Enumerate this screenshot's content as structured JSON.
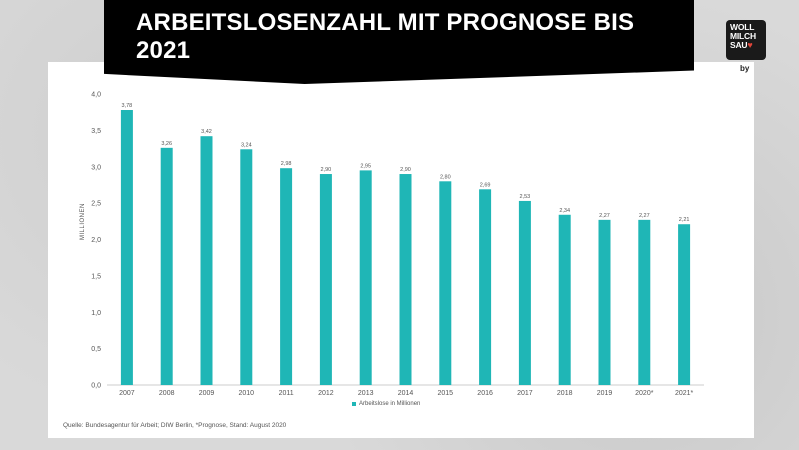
{
  "header": {
    "title": "ARBEITSLOSENZAHL MIT PROGNOSE BIS 2021"
  },
  "logo": {
    "line1": "WOLL",
    "line2": "MILCH",
    "line3": "SAU",
    "by": "by"
  },
  "source": "Quelle: Bundesagentur für Arbeit; DIW Berlin, *Prognose, Stand: August 2020",
  "colors": {
    "bar": "#1fb6b6",
    "banner": "#000000"
  },
  "chart_data": {
    "type": "bar",
    "categories": [
      "2007",
      "2008",
      "2009",
      "2010",
      "2011",
      "2012",
      "2013",
      "2014",
      "2015",
      "2016",
      "2017",
      "2018",
      "2019",
      "2020*",
      "2021*"
    ],
    "values": [
      3.78,
      3.26,
      3.42,
      3.24,
      2.98,
      2.9,
      2.95,
      2.9,
      2.8,
      2.69,
      2.53,
      2.34,
      2.27,
      2.27,
      2.21
    ],
    "value_labels": [
      "3,78",
      "3,26",
      "3,42",
      "3,24",
      "2,98",
      "2,90",
      "2,95",
      "2,90",
      "2,80",
      "2,69",
      "2,53",
      "2,34",
      "2,27",
      "2,27",
      "2,21"
    ],
    "ylabel": "MILLIONEN",
    "ylim": [
      0,
      4
    ],
    "yticks": [
      0,
      0.5,
      1,
      1.5,
      2,
      2.5,
      3,
      3.5,
      4
    ],
    "ytick_labels": [
      "0,0",
      "0,5",
      "1,0",
      "1,5",
      "2,0",
      "2,5",
      "3,0",
      "3,5",
      "4,0"
    ],
    "series": [
      {
        "name": "Arbeitslose in Millionen"
      }
    ],
    "legend_position": "bottom",
    "grid": false
  }
}
